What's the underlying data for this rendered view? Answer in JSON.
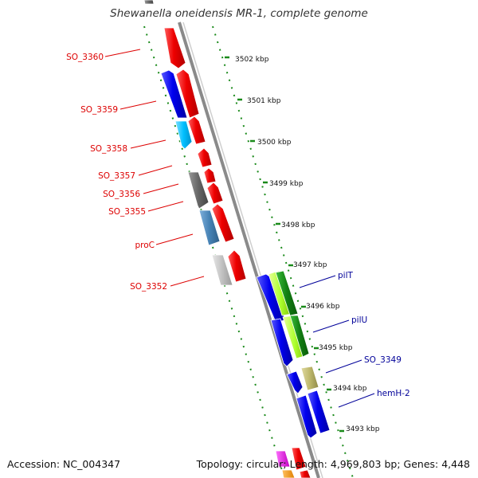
{
  "title": "Shewanella oneidensis MR-1, complete genome",
  "footer": {
    "accession": "Accession: NC_004347",
    "topology": "Topology: circular; Length: 4,969,803 bp; Genes: 4,448"
  },
  "colors": {
    "backbone": "#8a8a8a",
    "tick": "#1a8a1a",
    "left_label": "#dd0000",
    "right_label": "#000099",
    "scale_text": "#111111"
  },
  "scale_labels": [
    "3502 kbp",
    "3501 kbp",
    "3500 kbp",
    "3499 kbp",
    "3498 kbp",
    "3497 kbp",
    "3496 kbp",
    "3495 kbp",
    "3494 kbp",
    "3493 kbp"
  ],
  "left_labels": [
    "SO_3360",
    "SO_3359",
    "SO_3358",
    "SO_3357",
    "SO_3356",
    "SO_3355",
    "proC",
    "SO_3352"
  ],
  "right_labels": [
    "pilT",
    "pilU",
    "SO_3349",
    "hemH-2"
  ],
  "feature_colors": [
    "red",
    "blue",
    "deepskyblue",
    "dimgray",
    "steelblue",
    "silver",
    "green",
    "greenyellow",
    "darkkhaki",
    "magenta",
    "orange"
  ]
}
